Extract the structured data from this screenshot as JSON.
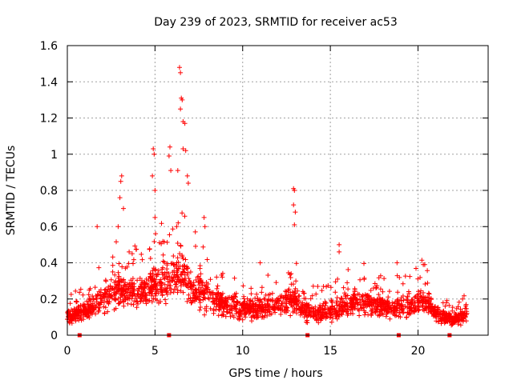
{
  "chart_data": {
    "type": "scatter",
    "title": "Day 239 of 2023, SRMTID for receiver ac53",
    "xlabel": "GPS time / hours",
    "ylabel": "SRMTID / TECUs",
    "xlim": [
      0,
      24
    ],
    "ylim": [
      0,
      1.6
    ],
    "xticks": [
      0,
      5,
      10,
      15,
      20
    ],
    "xtick_labels": [
      "0",
      "5",
      "10",
      "15",
      "20"
    ],
    "yticks": [
      0,
      0.2,
      0.4,
      0.6,
      0.8,
      1.0,
      1.2,
      1.4,
      1.6
    ],
    "ytick_labels": [
      "0",
      "0.2",
      "0.4",
      "0.6",
      "0.8",
      "1",
      "1.2",
      "1.4",
      "1.6"
    ],
    "grid": true,
    "marker": "plus",
    "series_color": "#ff0000",
    "x_range_covered": [
      0.0,
      22.8
    ],
    "typical_level_range": [
      0.05,
      0.3
    ],
    "gap_markers_x": [
      0.7,
      5.8,
      13.7,
      18.9,
      21.8
    ],
    "peak_points": [
      {
        "x": 3.0,
        "y": 0.76
      },
      {
        "x": 3.1,
        "y": 0.88
      },
      {
        "x": 3.05,
        "y": 0.85
      },
      {
        "x": 3.2,
        "y": 0.7
      },
      {
        "x": 2.9,
        "y": 0.6
      },
      {
        "x": 4.85,
        "y": 0.88
      },
      {
        "x": 4.9,
        "y": 1.03
      },
      {
        "x": 4.95,
        "y": 1.0
      },
      {
        "x": 5.0,
        "y": 0.8
      },
      {
        "x": 5.0,
        "y": 0.65
      },
      {
        "x": 5.85,
        "y": 1.04
      },
      {
        "x": 5.8,
        "y": 0.99
      },
      {
        "x": 5.9,
        "y": 0.91
      },
      {
        "x": 6.4,
        "y": 1.48
      },
      {
        "x": 6.45,
        "y": 1.45
      },
      {
        "x": 6.5,
        "y": 1.31
      },
      {
        "x": 6.55,
        "y": 1.3
      },
      {
        "x": 6.45,
        "y": 1.25
      },
      {
        "x": 6.6,
        "y": 1.18
      },
      {
        "x": 6.7,
        "y": 1.17
      },
      {
        "x": 6.6,
        "y": 1.03
      },
      {
        "x": 6.75,
        "y": 1.02
      },
      {
        "x": 6.3,
        "y": 0.91
      },
      {
        "x": 6.85,
        "y": 0.88
      },
      {
        "x": 6.9,
        "y": 0.84
      },
      {
        "x": 7.8,
        "y": 0.65
      },
      {
        "x": 7.85,
        "y": 0.6
      },
      {
        "x": 1.7,
        "y": 0.6
      },
      {
        "x": 12.9,
        "y": 0.81
      },
      {
        "x": 12.95,
        "y": 0.8
      },
      {
        "x": 12.9,
        "y": 0.72
      },
      {
        "x": 13.0,
        "y": 0.68
      },
      {
        "x": 12.95,
        "y": 0.61
      },
      {
        "x": 15.5,
        "y": 0.5
      },
      {
        "x": 15.5,
        "y": 0.46
      },
      {
        "x": 18.8,
        "y": 0.4
      },
      {
        "x": 20.3,
        "y": 0.39
      },
      {
        "x": 11.0,
        "y": 0.4
      }
    ]
  }
}
